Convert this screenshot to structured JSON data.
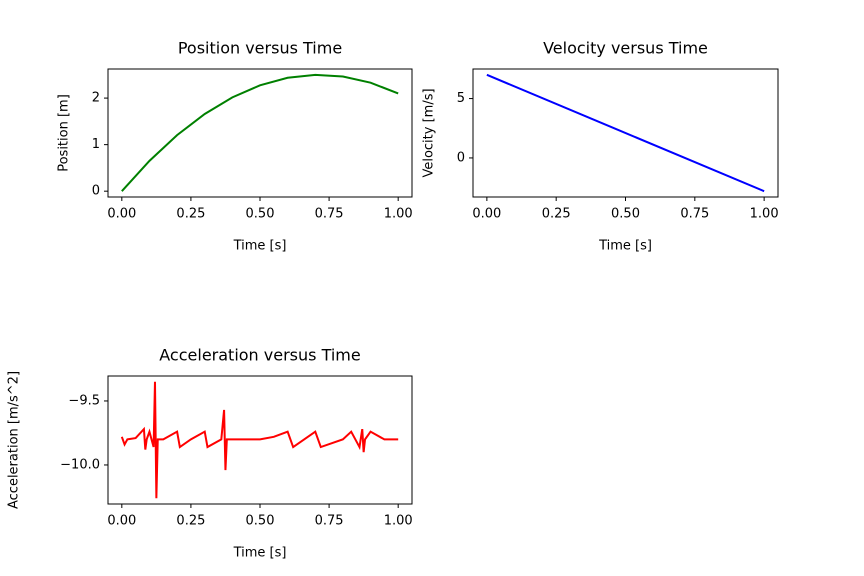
{
  "chart_data": [
    {
      "type": "line",
      "title": "Position versus Time",
      "xlabel": "Time [s]",
      "ylabel": "Position [m]",
      "x": [
        0,
        0.1,
        0.2,
        0.3,
        0.4,
        0.5,
        0.6,
        0.7,
        0.8,
        0.9,
        1.0
      ],
      "series": [
        {
          "color": "#008000",
          "values": [
            0,
            0.651,
            1.204,
            1.659,
            2.016,
            2.275,
            2.436,
            2.499,
            2.464,
            2.331,
            2.1
          ]
        }
      ],
      "xlim": [
        -0.05,
        1.05
      ],
      "ylim": [
        -0.125,
        2.625
      ],
      "xticks": [
        {
          "value": 0,
          "label": "0.00"
        },
        {
          "value": 0.25,
          "label": "0.25"
        },
        {
          "value": 0.5,
          "label": "0.50"
        },
        {
          "value": 0.75,
          "label": "0.75"
        },
        {
          "value": 1,
          "label": "1.00"
        }
      ],
      "yticks": [
        0,
        1,
        2
      ]
    },
    {
      "type": "line",
      "title": "Velocity versus Time",
      "xlabel": "Time [s]",
      "ylabel": "Velocity [m/s]",
      "x": [
        0,
        1.0
      ],
      "series": [
        {
          "color": "#0000ff",
          "values": [
            7,
            -2.8
          ]
        }
      ],
      "xlim": [
        -0.05,
        1.05
      ],
      "ylim": [
        -3.29,
        7.49
      ],
      "xticks": [
        {
          "value": 0,
          "label": "0.00"
        },
        {
          "value": 0.25,
          "label": "0.25"
        },
        {
          "value": 0.5,
          "label": "0.50"
        },
        {
          "value": 0.75,
          "label": "0.75"
        },
        {
          "value": 1,
          "label": "1.00"
        }
      ],
      "yticks": [
        0,
        5
      ]
    },
    {
      "type": "line",
      "title": "Acceleration versus Time",
      "xlabel": "Time [s]",
      "ylabel": "Acceleration [m/s^2]",
      "x": [
        0,
        0.01,
        0.02,
        0.05,
        0.08,
        0.085,
        0.09,
        0.1,
        0.115,
        0.12,
        0.125,
        0.13,
        0.15,
        0.2,
        0.21,
        0.25,
        0.3,
        0.31,
        0.36,
        0.37,
        0.375,
        0.38,
        0.45,
        0.5,
        0.55,
        0.6,
        0.62,
        0.7,
        0.72,
        0.8,
        0.83,
        0.86,
        0.87,
        0.875,
        0.88,
        0.9,
        0.95,
        1.0
      ],
      "series": [
        {
          "color": "#ff0000",
          "values": [
            -9.78,
            -9.84,
            -9.8,
            -9.79,
            -9.72,
            -9.88,
            -9.8,
            -9.74,
            -9.86,
            -9.35,
            -10.26,
            -9.8,
            -9.8,
            -9.74,
            -9.86,
            -9.8,
            -9.74,
            -9.86,
            -9.8,
            -9.57,
            -10.04,
            -9.8,
            -9.8,
            -9.8,
            -9.78,
            -9.74,
            -9.86,
            -9.74,
            -9.86,
            -9.8,
            -9.74,
            -9.86,
            -9.72,
            -9.9,
            -9.8,
            -9.74,
            -9.8,
            -9.8
          ]
        }
      ],
      "xlim": [
        -0.05,
        1.05
      ],
      "ylim": [
        -10.305,
        -9.305
      ],
      "xticks": [
        {
          "value": 0,
          "label": "0.00"
        },
        {
          "value": 0.25,
          "label": "0.25"
        },
        {
          "value": 0.5,
          "label": "0.50"
        },
        {
          "value": 0.75,
          "label": "0.75"
        },
        {
          "value": 1,
          "label": "1.00"
        }
      ],
      "yticks": [
        {
          "value": -10,
          "label": "−10.0"
        },
        {
          "value": -9.5,
          "label": "−9.5"
        }
      ]
    }
  ]
}
